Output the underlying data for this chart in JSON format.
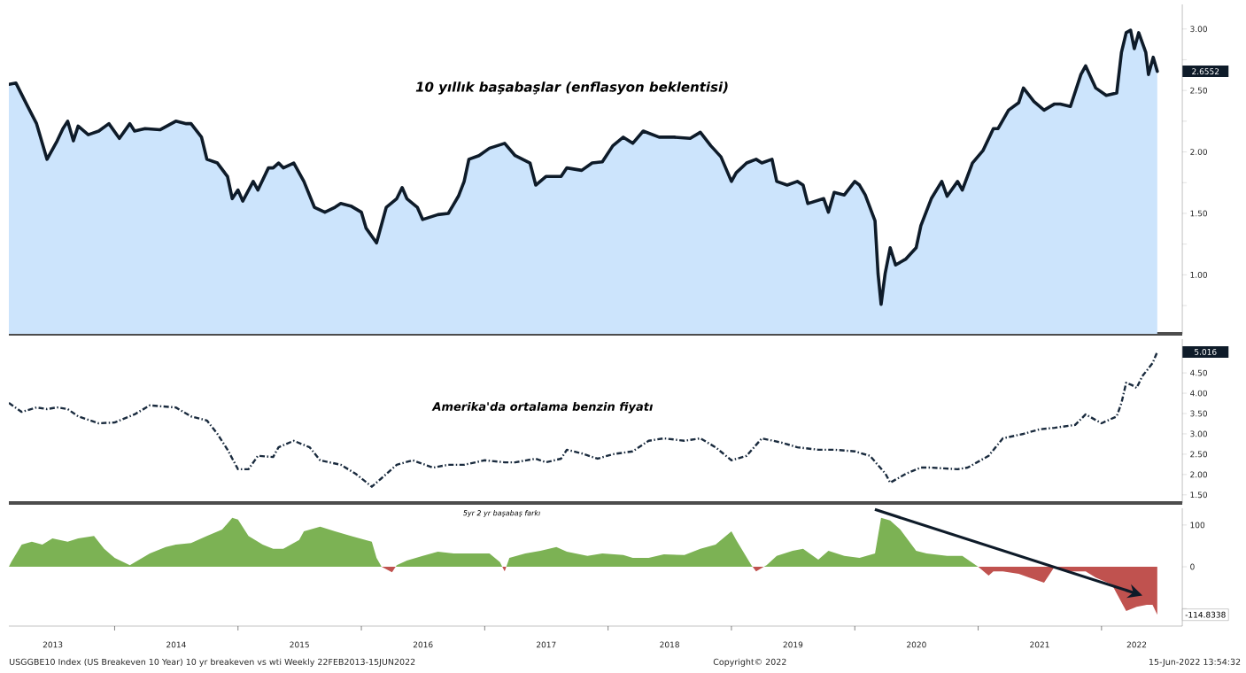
{
  "chart_data": [
    {
      "type": "area",
      "title": "10 yıllık başabaşlar (enflasyon beklentisi)",
      "tick_labels": "y",
      "x": [
        "2013-02-22",
        "2013-03-15",
        "2013-04-15",
        "2013-05-15",
        "2013-06-15",
        "2013-07-15",
        "2013-08-01",
        "2013-08-15",
        "2013-09-01",
        "2013-09-15",
        "2013-10-15",
        "2013-11-15",
        "2013-12-15",
        "2014-01-15",
        "2014-02-15",
        "2014-03-01",
        "2014-04-01",
        "2014-05-15",
        "2014-07-01",
        "2014-08-01",
        "2014-08-15",
        "2014-09-15",
        "2014-10-01",
        "2014-11-01",
        "2014-12-01",
        "2014-12-15",
        "2015-01-01",
        "2015-01-15",
        "2015-02-15",
        "2015-03-01",
        "2015-04-01",
        "2015-04-15",
        "2015-05-01",
        "2015-05-15",
        "2015-06-15",
        "2015-07-15",
        "2015-08-15",
        "2015-09-15",
        "2015-10-15",
        "2015-11-01",
        "2015-12-01",
        "2016-01-01",
        "2016-01-15",
        "2016-02-15",
        "2016-03-15",
        "2016-04-15",
        "2016-05-01",
        "2016-05-15",
        "2016-06-15",
        "2016-07-01",
        "2016-08-15",
        "2016-09-15",
        "2016-10-15",
        "2016-11-01",
        "2016-11-15",
        "2016-12-15",
        "2017-01-15",
        "2017-03-01",
        "2017-04-01",
        "2017-05-15",
        "2017-06-01",
        "2017-07-01",
        "2017-08-15",
        "2017-09-01",
        "2017-10-15",
        "2017-11-15",
        "2017-12-15",
        "2018-01-15",
        "2018-02-15",
        "2018-03-15",
        "2018-04-15",
        "2018-06-01",
        "2018-07-15",
        "2018-09-01",
        "2018-10-01",
        "2018-11-01",
        "2018-12-01",
        "2019-01-01",
        "2019-01-15",
        "2019-02-15",
        "2019-03-15",
        "2019-04-01",
        "2019-05-01",
        "2019-05-15",
        "2019-06-15",
        "2019-07-15",
        "2019-08-01",
        "2019-08-15",
        "2019-10-01",
        "2019-10-15",
        "2019-11-01",
        "2019-12-01",
        "2020-01-01",
        "2020-01-15",
        "2020-02-01",
        "2020-03-01",
        "2020-03-10",
        "2020-03-19",
        "2020-03-31",
        "2020-04-15",
        "2020-05-01",
        "2020-06-01",
        "2020-07-01",
        "2020-07-15",
        "2020-08-15",
        "2020-09-15",
        "2020-10-01",
        "2020-11-01",
        "2020-11-15",
        "2020-12-15",
        "2021-01-15",
        "2021-02-15",
        "2021-03-01",
        "2021-04-01",
        "2021-05-01",
        "2021-05-15",
        "2021-06-15",
        "2021-07-15",
        "2021-08-15",
        "2021-09-01",
        "2021-10-01",
        "2021-11-01",
        "2021-11-15",
        "2021-12-15",
        "2022-01-15",
        "2022-02-15",
        "2022-03-01",
        "2022-03-15",
        "2022-03-28",
        "2022-04-08",
        "2022-04-21",
        "2022-05-12",
        "2022-05-20",
        "2022-06-03",
        "2022-06-15"
      ],
      "series": [
        {
          "color": "#cce4fc",
          "values": [
            2.55,
            2.56,
            2.39,
            2.23,
            1.94,
            2.09,
            2.19,
            2.25,
            2.09,
            2.21,
            2.14,
            2.17,
            2.23,
            2.11,
            2.23,
            2.17,
            2.19,
            2.18,
            2.25,
            2.23,
            2.23,
            2.12,
            1.94,
            1.91,
            1.8,
            1.62,
            1.69,
            1.6,
            1.76,
            1.69,
            1.87,
            1.87,
            1.91,
            1.87,
            1.91,
            1.76,
            1.55,
            1.51,
            1.55,
            1.58,
            1.56,
            1.51,
            1.38,
            1.26,
            1.55,
            1.62,
            1.71,
            1.62,
            1.55,
            1.45,
            1.49,
            1.5,
            1.64,
            1.76,
            1.94,
            1.97,
            2.03,
            2.07,
            1.97,
            1.91,
            1.73,
            1.8,
            1.8,
            1.87,
            1.85,
            1.91,
            1.92,
            2.05,
            2.12,
            2.07,
            2.17,
            2.12,
            2.12,
            2.11,
            2.16,
            2.05,
            1.96,
            1.76,
            1.83,
            1.91,
            1.94,
            1.91,
            1.94,
            1.76,
            1.73,
            1.76,
            1.73,
            1.58,
            1.62,
            1.51,
            1.67,
            1.65,
            1.76,
            1.73,
            1.65,
            1.44,
            1.01,
            0.76,
            1.01,
            1.22,
            1.08,
            1.13,
            1.22,
            1.4,
            1.62,
            1.76,
            1.64,
            1.76,
            1.69,
            1.91,
            2.01,
            2.19,
            2.19,
            2.34,
            2.4,
            2.52,
            2.41,
            2.34,
            2.39,
            2.39,
            2.37,
            2.63,
            2.7,
            2.52,
            2.46,
            2.48,
            2.81,
            2.97,
            2.99,
            2.84,
            2.97,
            2.81,
            2.63,
            2.77,
            2.6552
          ]
        }
      ],
      "xlim": [
        "2013-02-22",
        "2022-08-28"
      ],
      "ylim": [
        0.52,
        3.2
      ],
      "yticks": [
        {
          "value": 0.75,
          "label": null
        },
        {
          "value": 1,
          "label": "1.00"
        },
        {
          "value": 1.25,
          "label": null
        },
        {
          "value": 1.5,
          "label": "1.50"
        },
        {
          "value": 1.75,
          "label": null
        },
        {
          "value": 2,
          "label": "2.00"
        },
        {
          "value": 2.25,
          "label": null
        },
        {
          "value": 2.5,
          "label": "2.50"
        },
        {
          "value": 2.75,
          "label": null
        },
        {
          "value": 3,
          "label": "3.00"
        }
      ],
      "line_style": "solid",
      "annotations": [
        "2.6552"
      ]
    },
    {
      "type": "line",
      "title": "Amerika'da ortalama benzin fiyatı",
      "tick_labels": "y",
      "line_style": "dashed",
      "x": [
        "2013-02-22",
        "2013-04-01",
        "2013-05-15",
        "2013-06-15",
        "2013-07-15",
        "2013-08-15",
        "2013-09-15",
        "2013-11-15",
        "2014-01-01",
        "2014-03-01",
        "2014-04-15",
        "2014-07-01",
        "2014-08-15",
        "2014-10-01",
        "2014-11-01",
        "2014-12-01",
        "2015-01-01",
        "2015-02-01",
        "2015-03-01",
        "2015-04-15",
        "2015-05-01",
        "2015-06-15",
        "2015-08-01",
        "2015-09-01",
        "2015-11-01",
        "2015-12-15",
        "2016-02-01",
        "2016-03-01",
        "2016-04-15",
        "2016-06-01",
        "2016-08-01",
        "2016-09-15",
        "2016-11-01",
        "2017-01-01",
        "2017-03-01",
        "2017-04-01",
        "2017-06-01",
        "2017-07-01",
        "2017-08-15",
        "2017-09-01",
        "2017-10-15",
        "2017-12-01",
        "2018-01-15",
        "2018-03-15",
        "2018-05-01",
        "2018-06-15",
        "2018-08-15",
        "2018-10-01",
        "2018-11-15",
        "2019-01-01",
        "2019-02-15",
        "2019-04-01",
        "2019-06-01",
        "2019-07-15",
        "2019-09-15",
        "2019-11-01",
        "2020-01-01",
        "2020-02-15",
        "2020-04-01",
        "2020-04-15",
        "2020-06-01",
        "2020-07-15",
        "2020-08-15",
        "2020-11-01",
        "2020-12-01",
        "2021-02-01",
        "2021-03-15",
        "2021-05-15",
        "2021-07-01",
        "2021-08-15",
        "2021-10-15",
        "2021-11-15",
        "2022-01-01",
        "2022-02-15",
        "2022-03-01",
        "2022-03-15",
        "2022-04-01",
        "2022-04-15",
        "2022-05-01",
        "2022-06-01",
        "2022-06-15"
      ],
      "series": [
        {
          "color": "#1a2b3e",
          "values": [
            3.76,
            3.54,
            3.65,
            3.61,
            3.65,
            3.61,
            3.43,
            3.26,
            3.28,
            3.48,
            3.7,
            3.65,
            3.43,
            3.33,
            3.0,
            2.61,
            2.13,
            2.13,
            2.46,
            2.43,
            2.67,
            2.83,
            2.67,
            2.35,
            2.24,
            2.02,
            1.7,
            1.91,
            2.24,
            2.35,
            2.17,
            2.24,
            2.24,
            2.35,
            2.3,
            2.3,
            2.39,
            2.3,
            2.39,
            2.61,
            2.52,
            2.39,
            2.5,
            2.57,
            2.83,
            2.89,
            2.83,
            2.89,
            2.67,
            2.35,
            2.46,
            2.89,
            2.78,
            2.67,
            2.61,
            2.61,
            2.57,
            2.46,
            2.02,
            1.8,
            2.02,
            2.17,
            2.17,
            2.13,
            2.17,
            2.46,
            2.89,
            3.0,
            3.11,
            3.15,
            3.22,
            3.48,
            3.26,
            3.43,
            3.76,
            4.26,
            4.2,
            4.13,
            4.41,
            4.74,
            5.016
          ]
        }
      ],
      "xlim": [
        "2013-02-22",
        "2022-08-28"
      ],
      "ylim": [
        1.3,
        5.33
      ],
      "yticks": [
        {
          "value": 1.5,
          "label": "1.50"
        },
        {
          "value": 2,
          "label": "2.00"
        },
        {
          "value": 2.5,
          "label": "2.50"
        },
        {
          "value": 3,
          "label": "3.00"
        },
        {
          "value": 3.5,
          "label": "3.50"
        },
        {
          "value": 4,
          "label": "4.00"
        },
        {
          "value": 4.5,
          "label": "4.50"
        }
      ],
      "annotations": [
        "5.016"
      ]
    },
    {
      "type": "area",
      "title": "5yr 2 yr başabaş farkı",
      "x": [
        "2013-02-22",
        "2013-03-01",
        "2013-04-01",
        "2013-05-01",
        "2013-06-01",
        "2013-07-01",
        "2013-08-15",
        "2013-09-15",
        "2013-11-01",
        "2013-12-01",
        "2014-01-01",
        "2014-02-15",
        "2014-03-15",
        "2014-04-15",
        "2014-06-01",
        "2014-07-01",
        "2014-08-15",
        "2014-10-01",
        "2014-11-15",
        "2014-12-15",
        "2015-01-01",
        "2015-02-01",
        "2015-03-15",
        "2015-04-15",
        "2015-05-15",
        "2015-07-01",
        "2015-07-15",
        "2015-09-01",
        "2015-10-15",
        "2015-12-01",
        "2016-02-01",
        "2016-02-15",
        "2016-03-01",
        "2016-04-01",
        "2016-04-15",
        "2016-05-15",
        "2016-07-01",
        "2016-08-15",
        "2016-10-01",
        "2016-11-15",
        "2017-01-15",
        "2017-02-15",
        "2017-03-01",
        "2017-03-15",
        "2017-05-01",
        "2017-06-15",
        "2017-08-01",
        "2017-09-01",
        "2017-11-01",
        "2017-12-15",
        "2018-02-15",
        "2018-03-15",
        "2018-05-01",
        "2018-06-15",
        "2018-08-15",
        "2018-10-01",
        "2018-11-15",
        "2019-01-01",
        "2019-01-15",
        "2019-03-01",
        "2019-03-15",
        "2019-04-15",
        "2019-05-15",
        "2019-07-01",
        "2019-08-01",
        "2019-09-15",
        "2019-10-15",
        "2019-12-01",
        "2020-01-15",
        "2020-03-01",
        "2020-03-19",
        "2020-04-15",
        "2020-05-15",
        "2020-07-01",
        "2020-08-01",
        "2020-10-01",
        "2020-11-15",
        "2021-01-01",
        "2021-02-01",
        "2021-02-15",
        "2021-03-15",
        "2021-05-01",
        "2021-06-01",
        "2021-07-15",
        "2021-08-15",
        "2021-09-15",
        "2021-11-15",
        "2021-12-15",
        "2022-02-01",
        "2022-02-15",
        "2022-03-15",
        "2022-04-15",
        "2022-05-15",
        "2022-06-01",
        "2022-06-15"
      ],
      "series": [
        {
          "colors": [
            "#7cb254",
            "#7cb254",
            "#7cb254",
            "#7cb254",
            "#7cb254",
            "#7cb254",
            "#7cb254",
            "#7cb254",
            "#7cb254",
            "#7cb254",
            "#7cb254",
            "#7cb254",
            "#7cb254",
            "#7cb254",
            "#7cb254",
            "#7cb254",
            "#7cb254",
            "#7cb254",
            "#7cb254",
            "#7cb254",
            "#7cb254",
            "#7cb254",
            "#7cb254",
            "#7cb254",
            "#7cb254",
            "#7cb254",
            "#7cb254",
            "#7cb254",
            "#7cb254",
            "#7cb254",
            "#7cb254",
            "#7cb254",
            "#7cb254",
            "#c0524f",
            "#7cb254",
            "#7cb254",
            "#7cb254",
            "#7cb254",
            "#7cb254",
            "#7cb254",
            "#7cb254",
            "#7cb254",
            "#c0524f",
            "#7cb254",
            "#7cb254",
            "#7cb254",
            "#7cb254",
            "#7cb254",
            "#7cb254",
            "#7cb254",
            "#7cb254",
            "#7cb254",
            "#7cb254",
            "#7cb254",
            "#7cb254",
            "#7cb254",
            "#7cb254",
            "#7cb254",
            "#7cb254",
            "#7cb254",
            "#c0524f",
            "#7cb254",
            "#7cb254",
            "#7cb254",
            "#7cb254",
            "#7cb254",
            "#7cb254",
            "#7cb254",
            "#7cb254",
            "#7cb254",
            "#7cb254",
            "#7cb254",
            "#7cb254",
            "#7cb254",
            "#7cb254",
            "#7cb254",
            "#7cb254",
            "#7cb254",
            "#c0524f",
            "#c0524f",
            "#c0524f",
            "#c0524f",
            "#c0524f",
            "#c0524f",
            "#7cb254",
            "#c0524f",
            "#c0524f",
            "#c0524f",
            "#c0524f",
            "#c0524f",
            "#c0524f",
            "#c0524f",
            "#c0524f",
            "#c0524f",
            "#c0524f"
          ],
          "values": [
            0,
            11,
            53,
            60,
            53,
            68,
            60,
            68,
            74,
            43,
            21,
            4,
            17,
            32,
            47,
            53,
            57,
            74,
            89,
            117,
            113,
            74,
            53,
            43,
            43,
            64,
            85,
            96,
            85,
            74,
            60,
            21,
            0,
            -13,
            4,
            15,
            26,
            36,
            32,
            32,
            32,
            11,
            -11,
            21,
            32,
            38,
            47,
            36,
            26,
            32,
            28,
            21,
            21,
            30,
            28,
            43,
            53,
            85,
            64,
            4,
            -11,
            4,
            26,
            38,
            43,
            17,
            38,
            26,
            21,
            32,
            117,
            111,
            89,
            38,
            32,
            26,
            26,
            0,
            -21,
            -11,
            -11,
            -17,
            -26,
            -38,
            0,
            -11,
            -11,
            -26,
            -43,
            -64,
            -106,
            -96,
            -91,
            -91,
            -114.8338
          ]
        }
      ],
      "xlim": [
        "2013-02-22",
        "2022-08-28"
      ],
      "ylim": [
        -142,
        140
      ],
      "yticks": [
        {
          "value": -100,
          "label": null
        },
        0,
        100
      ],
      "xticks": [
        {
          "value": "2014-01-01",
          "label": null
        },
        {
          "value": "2015-01-01",
          "label": null
        },
        {
          "value": "2016-01-01",
          "label": null
        },
        {
          "value": "2017-01-01",
          "label": null
        },
        {
          "value": "2018-01-01",
          "label": null
        },
        {
          "value": "2019-01-01",
          "label": null
        },
        {
          "value": "2020-01-01",
          "label": null
        },
        {
          "value": "2021-01-01",
          "label": null
        },
        {
          "value": "2022-01-01",
          "label": null
        },
        {
          "value": "2013-07-02",
          "label": "2013"
        },
        {
          "value": "2014-07-02",
          "label": "2014"
        },
        {
          "value": "2015-07-02",
          "label": "2015"
        },
        {
          "value": "2016-07-02",
          "label": "2016"
        },
        {
          "value": "2017-07-02",
          "label": "2017"
        },
        {
          "value": "2018-07-02",
          "label": "2018"
        },
        {
          "value": "2019-07-02",
          "label": "2019"
        },
        {
          "value": "2020-07-02",
          "label": "2020"
        },
        {
          "value": "2021-07-02",
          "label": "2021"
        },
        {
          "value": "2022-04-15",
          "label": "2022"
        }
      ],
      "annotations": [
        "-114.8338",
        "USGGBE10 Index (US Breakeven 10 Year) 10 yr breakeven vs wti  Weekly 22FEB2013-15JUN2022",
        "Copyright© 2022",
        "15-Jun-2022 13:54:32"
      ]
    }
  ]
}
